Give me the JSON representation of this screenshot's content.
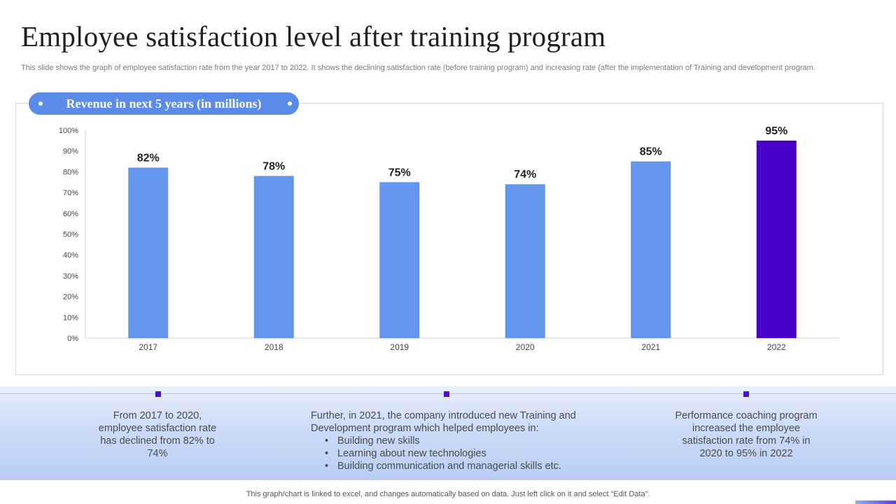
{
  "title": "Employee satisfaction level after training program",
  "subtitle": "This slide shows the graph of employee satisfaction rate from the year 2017 to 2022. It shows the declining satisfaction rate (before training program) and increasing rate (after the implementation of Training and development program.",
  "chart_pill": "Revenue in next 5 years (in millions)",
  "chart_data": {
    "type": "bar",
    "categories": [
      "2017",
      "2018",
      "2019",
      "2020",
      "2021",
      "2022"
    ],
    "values": [
      82,
      78,
      75,
      74,
      85,
      95
    ],
    "data_labels": [
      "82%",
      "78%",
      "75%",
      "74%",
      "85%",
      "95%"
    ],
    "ylim": [
      0,
      100
    ],
    "yticks": [
      "0%",
      "10%",
      "20%",
      "30%",
      "40%",
      "50%",
      "60%",
      "70%",
      "80%",
      "90%",
      "100%"
    ],
    "grid": false,
    "colors": {
      "default_bar": "#6495ed",
      "highlight_bar": "#4a00c8",
      "highlight_category": "2022"
    }
  },
  "notes": {
    "left": "From 2017 to 2020, employee satisfaction rate has declined from 82% to 74%",
    "middle_intro": "Further, in 2021, the company introduced new Training and Development program which helped employees in:",
    "middle_bullets": [
      "Building new skills",
      "Learning about new technologies",
      "Building communication and managerial skills etc."
    ],
    "right": "Performance coaching program increased the employee satisfaction rate from 74% in 2020 to 95% in 2022"
  },
  "footer": "This graph/chart is linked to excel, and changes automatically based on data. Just left click on it and select “Edit Data”.",
  "colors": {
    "accent": "#5b8be8",
    "marker": "#4a10c8"
  }
}
